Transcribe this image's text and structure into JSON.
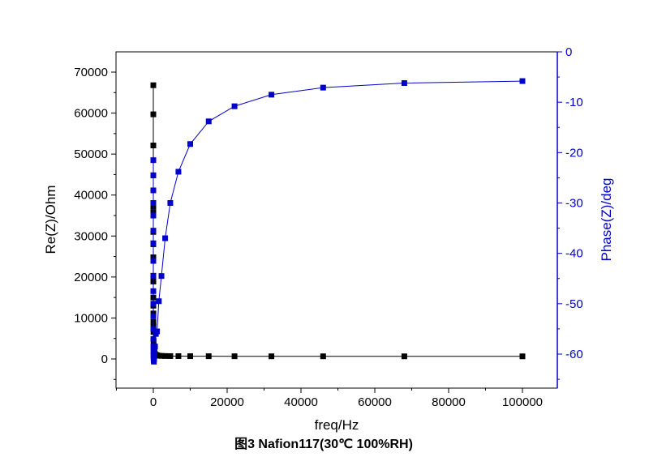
{
  "caption": "图3 Nafion117(30℃ 100%RH)",
  "chart_data": {
    "type": "scatter",
    "xlabel": "freq/Hz",
    "ylabel_left": "Re(Z)/Ohm",
    "ylabel_right": "Phase(Z)/deg",
    "xlim": [
      -10000,
      110000
    ],
    "ylim_left": [
      -5000,
      74000
    ],
    "ylim_right": [
      -65,
      0
    ],
    "x_ticks": [
      0,
      20000,
      40000,
      60000,
      80000,
      100000
    ],
    "y_left_ticks": [
      0,
      10000,
      20000,
      30000,
      40000,
      50000,
      60000,
      70000
    ],
    "y_right_ticks": [
      0,
      -10,
      -20,
      -30,
      -40,
      -50,
      -60
    ],
    "grid": false,
    "colors": {
      "left_series": "#000000",
      "right_series": "#0000cc",
      "right_axis": "#0000cc"
    },
    "series": [
      {
        "axis": "left",
        "marker": "square",
        "x": [
          0.1,
          0.15,
          0.22,
          0.32,
          0.46,
          0.68,
          1,
          1.5,
          2.2,
          3.2,
          4.6,
          6.8,
          10,
          15,
          22,
          32,
          46,
          68,
          100,
          150,
          220,
          320,
          460,
          680,
          1000,
          1500,
          2200,
          3200,
          4600,
          6800,
          10000,
          15000,
          22000,
          32000,
          46000,
          68000,
          100000
        ],
        "y": [
          66800,
          59700,
          52100,
          44800,
          37200,
          35800,
          31000,
          28000,
          24800,
          20300,
          18900,
          15000,
          13000,
          11100,
          9000,
          7900,
          6600,
          4400,
          3200,
          2300,
          1700,
          1400,
          1200,
          1000,
          900,
          800,
          750,
          720,
          700,
          690,
          680,
          670,
          660,
          650,
          650,
          640,
          640
        ]
      },
      {
        "axis": "right",
        "marker": "square",
        "x": [
          0.1,
          0.15,
          0.22,
          0.32,
          0.46,
          0.68,
          1,
          1.5,
          2.2,
          3.2,
          4.6,
          6.8,
          10,
          15,
          22,
          32,
          46,
          68,
          100,
          150,
          220,
          320,
          460,
          680,
          1000,
          1500,
          2200,
          3200,
          4600,
          6800,
          10000,
          15000,
          22000,
          32000,
          46000,
          68000,
          100000
        ],
        "y": [
          -21.5,
          -24.5,
          -27.5,
          -30,
          -32.5,
          -35.5,
          -38,
          -41.5,
          -44.5,
          -47.5,
          -50,
          -52.5,
          -55,
          -57,
          -58.5,
          -59.5,
          -60.3,
          -60.8,
          -61.2,
          -61.5,
          -61,
          -59.5,
          -58.5,
          -56,
          -55.5,
          -49.5,
          -44.5,
          -37,
          -30,
          -23.8,
          -18.3,
          -13.8,
          -10.8,
          -8.5,
          -7.1,
          -6.2,
          -5.8
        ]
      }
    ]
  }
}
